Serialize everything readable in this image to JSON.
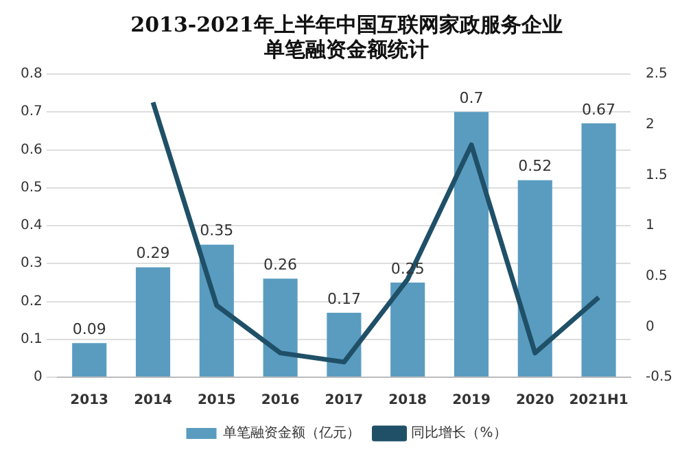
{
  "chart_data": {
    "type": "bar",
    "title": "2013-2021年上半年中国互联网家政服务企业单笔融资金额统计",
    "categories": [
      "2013",
      "2014",
      "2015",
      "2016",
      "2017",
      "2018",
      "2019",
      "2020",
      "2021H1"
    ],
    "series": [
      {
        "name": "单笔融资金额（亿元）",
        "color": "#5a9cc0",
        "values": [
          0.09,
          0.29,
          0.35,
          0.26,
          0.17,
          0.25,
          0.7,
          0.52,
          0.67
        ],
        "value_labels": [
          "0.09",
          "0.29",
          "0.35",
          "0.26",
          "0.17",
          "0.25",
          "0.7",
          "0.52",
          "0.67"
        ]
      },
      {
        "name": "同比增长（%）",
        "type": "line",
        "axis": "y2",
        "color": "#1f5068",
        "values": [
          null,
          2.22,
          0.21,
          -0.26,
          -0.35,
          0.47,
          1.8,
          -0.26,
          0.29
        ]
      }
    ],
    "ylim": [
      0,
      0.8
    ],
    "yticks": [
      0,
      0.1,
      0.2,
      0.3,
      0.4,
      0.5,
      0.6,
      0.7,
      0.8
    ],
    "y2lim": [
      -0.5,
      2.5
    ],
    "y2ticks": [
      -0.5,
      0,
      0.5,
      1,
      1.5,
      2,
      2.5
    ],
    "grid": "y",
    "legend": "bottom",
    "marker": "none"
  }
}
